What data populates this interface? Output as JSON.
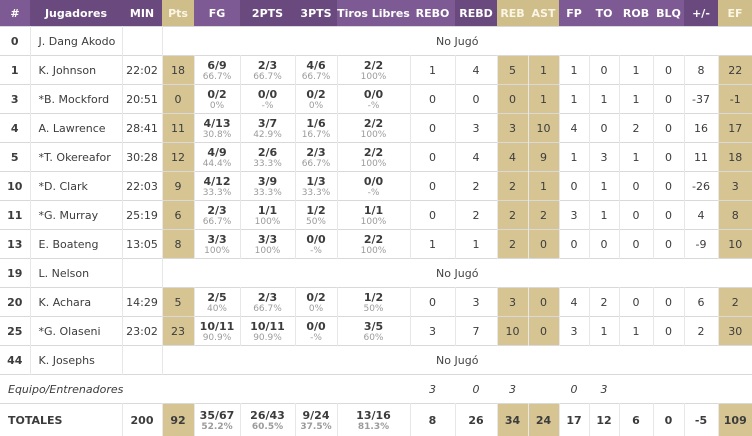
{
  "colors": {
    "purple_dark": "#6a4a7e",
    "purple_light": "#7d5a93",
    "tan_header": "#cfbe89",
    "tan_cell": "#d6c593"
  },
  "table": {
    "columns": [
      {
        "key": "num",
        "label": "#"
      },
      {
        "key": "player",
        "label": "Jugadores"
      },
      {
        "key": "min",
        "label": "MIN"
      },
      {
        "key": "pts",
        "label": "Pts"
      },
      {
        "key": "fg",
        "label": "FG"
      },
      {
        "key": "p2",
        "label": "2PTS"
      },
      {
        "key": "p3",
        "label": "3PTS"
      },
      {
        "key": "ft",
        "label": "Tiros Libres"
      },
      {
        "key": "rebo",
        "label": "REBO"
      },
      {
        "key": "rebd",
        "label": "REBD"
      },
      {
        "key": "reb",
        "label": "REB"
      },
      {
        "key": "ast",
        "label": "AST"
      },
      {
        "key": "fp",
        "label": "FP"
      },
      {
        "key": "to",
        "label": "TO"
      },
      {
        "key": "rob",
        "label": "ROB"
      },
      {
        "key": "blq",
        "label": "BLQ"
      },
      {
        "key": "pm",
        "label": "+/-"
      },
      {
        "key": "ef",
        "label": "EF"
      }
    ],
    "dnp_label": "No Jugó",
    "players": [
      {
        "num": "0",
        "name": "J. Dang Akodo",
        "dnp": true
      },
      {
        "num": "1",
        "name": "K. Johnson",
        "min": "22:02",
        "pts": "18",
        "fg": [
          "6/9",
          "66.7%"
        ],
        "p2": [
          "2/3",
          "66.7%"
        ],
        "p3": [
          "4/6",
          "66.7%"
        ],
        "ft": [
          "2/2",
          "100%"
        ],
        "rebo": "1",
        "rebd": "4",
        "reb": "5",
        "ast": "1",
        "fp": "1",
        "to": "0",
        "rob": "1",
        "blq": "0",
        "pm": "8",
        "ef": "22"
      },
      {
        "num": "3",
        "name": "*B. Mockford",
        "min": "20:51",
        "pts": "0",
        "fg": [
          "0/2",
          "0%"
        ],
        "p2": [
          "0/0",
          "-%"
        ],
        "p3": [
          "0/2",
          "0%"
        ],
        "ft": [
          "0/0",
          "-%"
        ],
        "rebo": "0",
        "rebd": "0",
        "reb": "0",
        "ast": "1",
        "fp": "1",
        "to": "1",
        "rob": "1",
        "blq": "0",
        "pm": "-37",
        "ef": "-1"
      },
      {
        "num": "4",
        "name": "A. Lawrence",
        "min": "28:41",
        "pts": "11",
        "fg": [
          "4/13",
          "30.8%"
        ],
        "p2": [
          "3/7",
          "42.9%"
        ],
        "p3": [
          "1/6",
          "16.7%"
        ],
        "ft": [
          "2/2",
          "100%"
        ],
        "rebo": "0",
        "rebd": "3",
        "reb": "3",
        "ast": "10",
        "fp": "4",
        "to": "0",
        "rob": "2",
        "blq": "0",
        "pm": "16",
        "ef": "17"
      },
      {
        "num": "5",
        "name": "*T. Okereafor",
        "min": "30:28",
        "pts": "12",
        "fg": [
          "4/9",
          "44.4%"
        ],
        "p2": [
          "2/6",
          "33.3%"
        ],
        "p3": [
          "2/3",
          "66.7%"
        ],
        "ft": [
          "2/2",
          "100%"
        ],
        "rebo": "0",
        "rebd": "4",
        "reb": "4",
        "ast": "9",
        "fp": "1",
        "to": "3",
        "rob": "1",
        "blq": "0",
        "pm": "11",
        "ef": "18"
      },
      {
        "num": "10",
        "name": "*D. Clark",
        "min": "22:03",
        "pts": "9",
        "fg": [
          "4/12",
          "33.3%"
        ],
        "p2": [
          "3/9",
          "33.3%"
        ],
        "p3": [
          "1/3",
          "33.3%"
        ],
        "ft": [
          "0/0",
          "-%"
        ],
        "rebo": "0",
        "rebd": "2",
        "reb": "2",
        "ast": "1",
        "fp": "0",
        "to": "1",
        "rob": "0",
        "blq": "0",
        "pm": "-26",
        "ef": "3"
      },
      {
        "num": "11",
        "name": "*G. Murray",
        "min": "25:19",
        "pts": "6",
        "fg": [
          "2/3",
          "66.7%"
        ],
        "p2": [
          "1/1",
          "100%"
        ],
        "p3": [
          "1/2",
          "50%"
        ],
        "ft": [
          "1/1",
          "100%"
        ],
        "rebo": "0",
        "rebd": "2",
        "reb": "2",
        "ast": "2",
        "fp": "3",
        "to": "1",
        "rob": "0",
        "blq": "0",
        "pm": "4",
        "ef": "8"
      },
      {
        "num": "13",
        "name": "E. Boateng",
        "min": "13:05",
        "pts": "8",
        "fg": [
          "3/3",
          "100%"
        ],
        "p2": [
          "3/3",
          "100%"
        ],
        "p3": [
          "0/0",
          "-%"
        ],
        "ft": [
          "2/2",
          "100%"
        ],
        "rebo": "1",
        "rebd": "1",
        "reb": "2",
        "ast": "0",
        "fp": "0",
        "to": "0",
        "rob": "0",
        "blq": "0",
        "pm": "-9",
        "ef": "10"
      },
      {
        "num": "19",
        "name": "L. Nelson",
        "dnp": true
      },
      {
        "num": "20",
        "name": "K. Achara",
        "min": "14:29",
        "pts": "5",
        "fg": [
          "2/5",
          "40%"
        ],
        "p2": [
          "2/3",
          "66.7%"
        ],
        "p3": [
          "0/2",
          "0%"
        ],
        "ft": [
          "1/2",
          "50%"
        ],
        "rebo": "0",
        "rebd": "3",
        "reb": "3",
        "ast": "0",
        "fp": "4",
        "to": "2",
        "rob": "0",
        "blq": "0",
        "pm": "6",
        "ef": "2"
      },
      {
        "num": "25",
        "name": "*G. Olaseni",
        "min": "23:02",
        "pts": "23",
        "fg": [
          "10/11",
          "90.9%"
        ],
        "p2": [
          "10/11",
          "90.9%"
        ],
        "p3": [
          "0/0",
          "-%"
        ],
        "ft": [
          "3/5",
          "60%"
        ],
        "rebo": "3",
        "rebd": "7",
        "reb": "10",
        "ast": "0",
        "fp": "3",
        "to": "1",
        "rob": "1",
        "blq": "0",
        "pm": "2",
        "ef": "30"
      },
      {
        "num": "44",
        "name": "K. Josephs",
        "dnp": true
      }
    ],
    "team_row": {
      "label": "Equipo/Entrenadores",
      "rebo": "3",
      "rebd": "0",
      "reb": "3",
      "ast": "",
      "fp": "0",
      "to": "3",
      "rob": "",
      "blq": "",
      "pm": "",
      "ef": ""
    },
    "totals": {
      "label": "TOTALES",
      "min": "200",
      "pts": "92",
      "fg": [
        "35/67",
        "52.2%"
      ],
      "p2": [
        "26/43",
        "60.5%"
      ],
      "p3": [
        "9/24",
        "37.5%"
      ],
      "ft": [
        "13/16",
        "81.3%"
      ],
      "rebo": "8",
      "rebd": "26",
      "reb": "34",
      "ast": "24",
      "fp": "17",
      "to": "12",
      "rob": "6",
      "blq": "0",
      "pm": "-5",
      "ef": "109"
    }
  }
}
